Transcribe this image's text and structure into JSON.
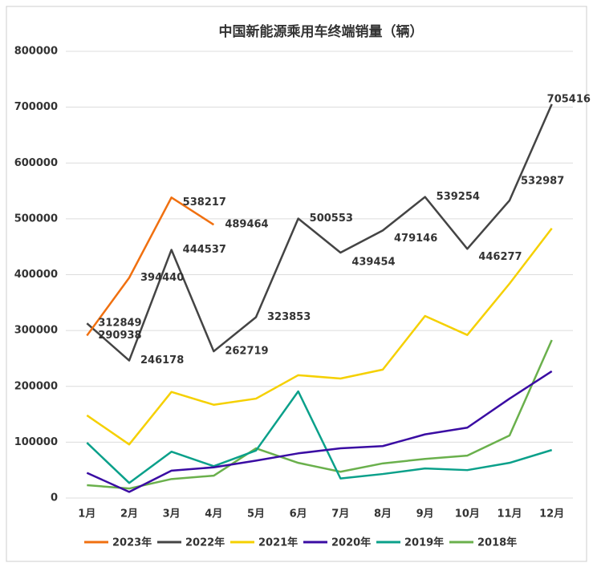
{
  "chart_data": {
    "type": "line",
    "title": "中国新能源乘用车终端销量（辆）",
    "categories": [
      "1月",
      "2月",
      "3月",
      "4月",
      "5月",
      "6月",
      "7月",
      "8月",
      "9月",
      "10月",
      "11月",
      "12月"
    ],
    "ylim": [
      0,
      800000
    ],
    "yticks": [
      0,
      100000,
      200000,
      300000,
      400000,
      500000,
      600000,
      700000,
      800000
    ],
    "grid": true,
    "legend": "bottom",
    "series": [
      {
        "name": "2023年",
        "color": "#f07010",
        "values": [
          290938,
          394440,
          538217,
          489464,
          null,
          null,
          null,
          null,
          null,
          null,
          null,
          null
        ],
        "data_labels": true
      },
      {
        "name": "2022年",
        "color": "#444444",
        "values": [
          312849,
          246178,
          444537,
          262719,
          323853,
          500553,
          439454,
          479146,
          539254,
          446277,
          532987,
          705416
        ],
        "data_labels": true
      },
      {
        "name": "2021年",
        "color": "#f5d000",
        "values": [
          148000,
          96000,
          190000,
          167000,
          178000,
          220000,
          214000,
          230000,
          326000,
          292000,
          384000,
          483000
        ]
      },
      {
        "name": "2020年",
        "color": "#3a0ca3",
        "values": [
          45000,
          11000,
          49000,
          55000,
          67000,
          80000,
          89000,
          93000,
          114000,
          126000,
          178000,
          227000
        ]
      },
      {
        "name": "2019年",
        "color": "#0aa08a",
        "values": [
          99000,
          27000,
          83000,
          57000,
          85000,
          191000,
          35000,
          43000,
          53000,
          50000,
          63000,
          86000
        ]
      },
      {
        "name": "2018年",
        "color": "#6ab04c",
        "values": [
          23000,
          17000,
          34000,
          40000,
          89000,
          63000,
          47000,
          62000,
          70000,
          76000,
          112000,
          283000
        ]
      }
    ]
  }
}
